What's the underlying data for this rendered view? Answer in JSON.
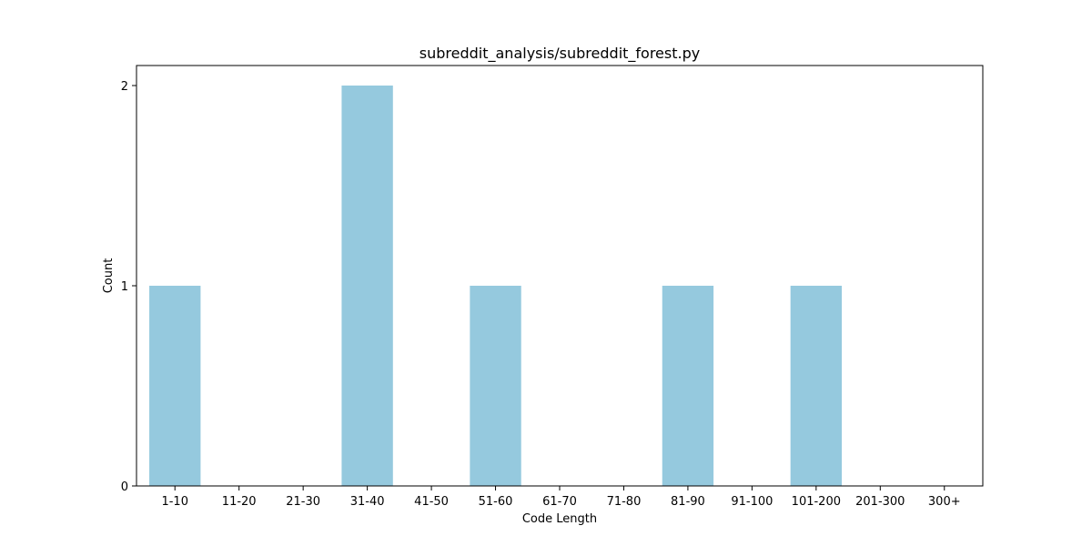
{
  "chart_data": {
    "type": "bar",
    "title": "subreddit_analysis/subreddit_forest.py",
    "xlabel": "Code Length",
    "ylabel": "Count",
    "categories": [
      "1-10",
      "11-20",
      "21-30",
      "31-40",
      "41-50",
      "51-60",
      "61-70",
      "71-80",
      "81-90",
      "91-100",
      "101-200",
      "201-300",
      "300+"
    ],
    "values": [
      1,
      0,
      0,
      2,
      0,
      1,
      0,
      0,
      1,
      0,
      1,
      0,
      0
    ],
    "ylim": [
      0,
      2.1
    ],
    "yticks": [
      0,
      1,
      2
    ],
    "grid": false,
    "legend": "none",
    "bar_color": "#95c9de"
  }
}
